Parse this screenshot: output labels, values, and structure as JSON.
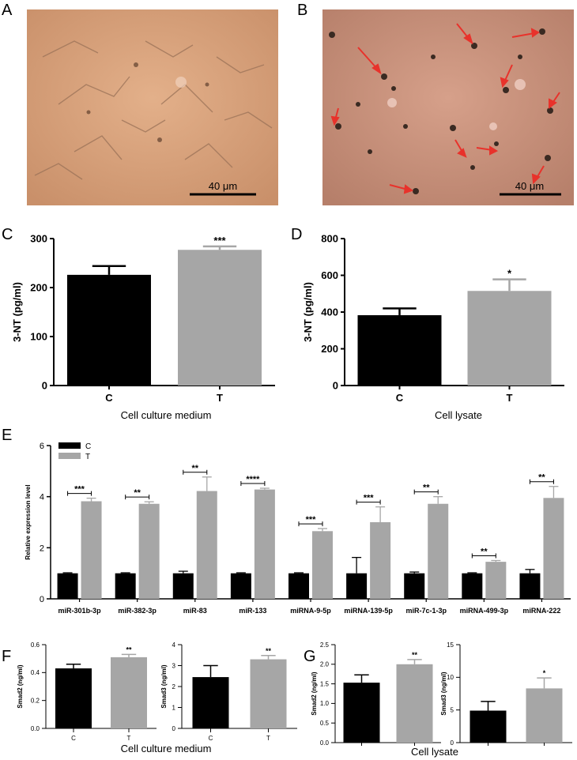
{
  "panels": {
    "A": "A",
    "B": "B",
    "C": "C",
    "D": "D",
    "E": "E",
    "F": "F",
    "G": "G"
  },
  "images": {
    "A": {
      "scale_label": "40 μm",
      "tint": "#d9a47d"
    },
    "B": {
      "scale_label": "40 μm",
      "tint": "#c98f76",
      "arrow_color": "#e8322b"
    }
  },
  "captions": {
    "C": "Cell culture medium",
    "D": "Cell lysate",
    "F": "Cell culture medium",
    "G": "Cell lysate"
  },
  "colors": {
    "C": "#000000",
    "T": "#a6a6a6"
  },
  "chart_data": [
    {
      "id": "C",
      "type": "bar",
      "categories": [
        "C",
        "T"
      ],
      "values": [
        226,
        277
      ],
      "errors": [
        18,
        7
      ],
      "significance": [
        "",
        "***"
      ],
      "ylabel": "3-NT (pg/ml)",
      "ylim": [
        0,
        300
      ],
      "yticks": [
        0,
        100,
        200,
        300
      ]
    },
    {
      "id": "D",
      "type": "bar",
      "categories": [
        "C",
        "T"
      ],
      "values": [
        383,
        515
      ],
      "errors": [
        37,
        63
      ],
      "significance": [
        "",
        "*"
      ],
      "ylabel": "3-NT (pg/ml)",
      "ylim": [
        0,
        800
      ],
      "yticks": [
        0,
        200,
        400,
        600,
        800
      ]
    },
    {
      "id": "E",
      "type": "bar",
      "categories": [
        "miR-301b-3p",
        "miR-382-3p",
        "miR-83",
        "miR-133",
        "miRNA-9-5p",
        "miRNA-139-5p",
        "miR-7c-1-3p",
        "miRNA-499-3p",
        "miRNA-222"
      ],
      "series": [
        {
          "name": "C",
          "values": [
            1.0,
            1.0,
            1.0,
            1.0,
            1.0,
            1.0,
            1.0,
            1.0,
            1.0
          ],
          "errors": [
            0.02,
            0.02,
            0.08,
            0.02,
            0.02,
            0.62,
            0.05,
            0.02,
            0.15
          ]
        },
        {
          "name": "T",
          "values": [
            3.82,
            3.72,
            4.22,
            4.28,
            2.65,
            3.0,
            3.72,
            1.45,
            3.95
          ],
          "errors": [
            0.12,
            0.08,
            0.55,
            0.05,
            0.1,
            0.6,
            0.28,
            0.05,
            0.45
          ]
        }
      ],
      "significance": [
        "***",
        "**",
        "**",
        "****",
        "***",
        "***",
        "**",
        "**",
        "**"
      ],
      "ylabel": "Relative expression level",
      "ylim": [
        0,
        6
      ],
      "yticks": [
        0,
        2,
        4,
        6
      ],
      "legend": "top-left"
    },
    {
      "id": "F1",
      "type": "bar",
      "categories": [
        "C",
        "T"
      ],
      "values": [
        0.43,
        0.51
      ],
      "errors": [
        0.03,
        0.02
      ],
      "significance": [
        "",
        "**"
      ],
      "ylabel": "Smad2 (ng/ml)",
      "ylim": [
        0,
        0.6
      ],
      "yticks": [
        0.0,
        0.2,
        0.4,
        0.6
      ]
    },
    {
      "id": "F2",
      "type": "bar",
      "categories": [
        "C",
        "T"
      ],
      "values": [
        2.45,
        3.3
      ],
      "errors": [
        0.55,
        0.18
      ],
      "significance": [
        "",
        "**"
      ],
      "ylabel": "Smad3 (ng/ml)",
      "ylim": [
        0,
        4
      ],
      "yticks": [
        0,
        1,
        2,
        3,
        4
      ]
    },
    {
      "id": "G1",
      "type": "bar",
      "categories": [
        "C",
        "T"
      ],
      "values": [
        1.53,
        2.0
      ],
      "errors": [
        0.2,
        0.12
      ],
      "significance": [
        "",
        "**"
      ],
      "ylabel": "Smad2 (ng/ml)",
      "ylim": [
        0,
        2.5
      ],
      "yticks": [
        0.0,
        0.5,
        1.0,
        1.5,
        2.0,
        2.5
      ]
    },
    {
      "id": "G2",
      "type": "bar",
      "categories": [
        "C",
        "T"
      ],
      "values": [
        4.9,
        8.3
      ],
      "errors": [
        1.4,
        1.6
      ],
      "significance": [
        "",
        "*"
      ],
      "ylabel": "Smad3 (ng/ml)",
      "ylim": [
        0,
        15
      ],
      "yticks": [
        0,
        5,
        10,
        15
      ]
    }
  ]
}
